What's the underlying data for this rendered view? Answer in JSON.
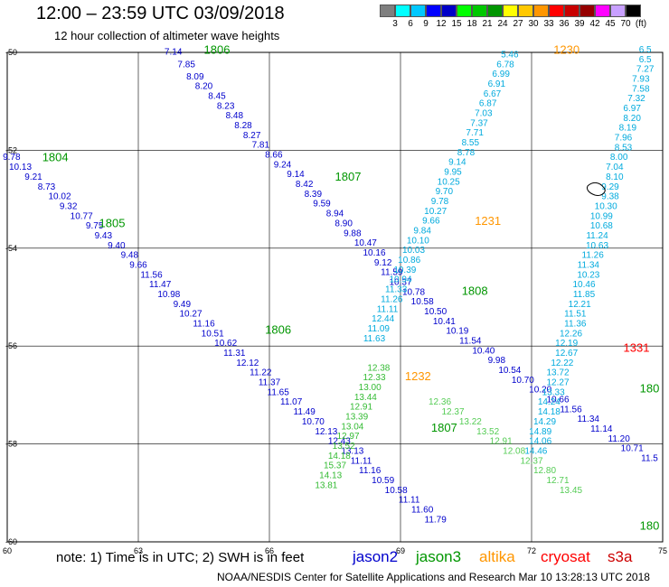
{
  "header": {
    "title": "12:00 – 23:59 UTC 03/09/2018",
    "subtitle": "12 hour collection of altimeter wave heights"
  },
  "legend": {
    "colors": [
      "#7f7f7f",
      "#00ffff",
      "#00c8ff",
      "#0000ff",
      "#0000c8",
      "#00ff00",
      "#00c800",
      "#009600",
      "#ffff00",
      "#ffc800",
      "#ff9600",
      "#ff0000",
      "#c80000",
      "#960000",
      "#ff00ff",
      "#c8a0ff",
      "#000000"
    ],
    "labels": [
      "3",
      "6",
      "9",
      "12",
      "15",
      "18",
      "21",
      "24",
      "27",
      "30",
      "33",
      "36",
      "39",
      "42",
      "45",
      "70",
      "(ft)"
    ]
  },
  "note": "note: 1) Time is in UTC; 2) SWH is in feet",
  "satellites": [
    {
      "name": "jason2",
      "color": "#0000cc"
    },
    {
      "name": "jason3",
      "color": "#009600"
    },
    {
      "name": "altika",
      "color": "#ff9600"
    },
    {
      "name": "cryosat",
      "color": "#ff0000"
    },
    {
      "name": "s3a",
      "color": "#cc0000"
    }
  ],
  "credit": "NOAA/NESDIS Center for Satellite Applications and Research   Mar 10 13:28:13 UTC 2018",
  "chart_data": {
    "type": "scatter",
    "xlim": [
      60,
      75
    ],
    "ylim": [
      -60,
      -50
    ],
    "xticks": [
      60,
      63,
      66,
      69,
      72,
      75
    ],
    "xtick_labels": [
      "60",
      "63",
      "66",
      "69",
      "72",
      "75"
    ],
    "yticks": [
      -50,
      -52,
      -54,
      -56,
      -58,
      -60
    ],
    "ytick_labels": [
      "-50",
      "-52",
      "-54",
      "-56",
      "-58",
      "-60"
    ],
    "grid": true,
    "series": [
      {
        "name": "1806",
        "color": "#0000cc",
        "points": [
          [
            63.8,
            -50.05,
            "7.14"
          ],
          [
            64.1,
            -50.3,
            "7.85"
          ],
          [
            64.3,
            -50.55,
            "8.09"
          ],
          [
            64.5,
            -50.75,
            "8.20"
          ],
          [
            64.8,
            -50.95,
            "8.45"
          ],
          [
            65.0,
            -51.15,
            "8.23"
          ],
          [
            65.2,
            -51.35,
            "8.48"
          ],
          [
            65.4,
            -51.55,
            "8.28"
          ],
          [
            65.6,
            -51.75,
            "8.27"
          ],
          [
            65.8,
            -51.95,
            "7.81"
          ],
          [
            66.1,
            -52.15,
            "8.66"
          ],
          [
            66.3,
            -52.35,
            "9.24"
          ],
          [
            66.6,
            -52.55,
            "9.14"
          ],
          [
            66.8,
            -52.75,
            "8.42"
          ],
          [
            67.0,
            -52.95,
            "8.39"
          ],
          [
            67.2,
            -53.15,
            "9.59"
          ],
          [
            67.5,
            -53.35,
            "8.94"
          ],
          [
            67.7,
            -53.55,
            "8.90"
          ],
          [
            67.9,
            -53.75,
            "9.88"
          ],
          [
            68.2,
            -53.95,
            "10.47"
          ],
          [
            68.4,
            -54.15,
            "10.16"
          ],
          [
            68.6,
            -54.35,
            "9.12"
          ],
          [
            68.8,
            -54.55,
            "11.59"
          ],
          [
            69.0,
            -54.75,
            "10.37"
          ],
          [
            69.3,
            -54.95,
            "10.78"
          ],
          [
            69.5,
            -55.15,
            "10.58"
          ],
          [
            69.8,
            -55.35,
            "10.50"
          ],
          [
            70.0,
            -55.55,
            "10.41"
          ],
          [
            70.3,
            -55.75,
            "10.19"
          ],
          [
            70.6,
            -55.95,
            "11.54"
          ],
          [
            70.9,
            -56.15,
            "10.40"
          ],
          [
            71.2,
            -56.35,
            "9.98"
          ],
          [
            71.5,
            -56.55,
            "10.54"
          ],
          [
            71.8,
            -56.75,
            "10.70"
          ],
          [
            72.2,
            -56.95,
            "10.20"
          ],
          [
            72.6,
            -57.15,
            "10.66"
          ],
          [
            72.9,
            -57.35,
            "11.56"
          ],
          [
            73.3,
            -57.55,
            "11.34"
          ],
          [
            73.6,
            -57.75,
            "11.14"
          ],
          [
            74.0,
            -57.95,
            "11.20"
          ],
          [
            74.3,
            -58.15,
            "10.71"
          ],
          [
            74.7,
            -58.35,
            "11.5"
          ]
        ]
      },
      {
        "name": "1804",
        "color": "#0000cc",
        "points": [
          [
            60.1,
            -52.2,
            "9.78"
          ],
          [
            60.3,
            -52.4,
            "10.13"
          ],
          [
            60.6,
            -52.6,
            "9.21"
          ],
          [
            60.9,
            -52.8,
            "8.73"
          ],
          [
            61.2,
            -53.0,
            "10.02"
          ],
          [
            61.4,
            -53.2,
            "9.32"
          ],
          [
            61.7,
            -53.4,
            "10.77"
          ],
          [
            62.0,
            -53.6,
            "9.75"
          ],
          [
            62.2,
            -53.8,
            "9.43"
          ],
          [
            62.5,
            -54.0,
            "9.40"
          ],
          [
            62.8,
            -54.2,
            "9.48"
          ],
          [
            63.0,
            -54.4,
            "9.66"
          ],
          [
            63.3,
            -54.6,
            "11.56"
          ],
          [
            63.5,
            -54.8,
            "11.47"
          ],
          [
            63.7,
            -55.0,
            "10.98"
          ],
          [
            64.0,
            -55.2,
            "9.49"
          ],
          [
            64.2,
            -55.4,
            "10.27"
          ],
          [
            64.5,
            -55.6,
            "11.16"
          ],
          [
            64.7,
            -55.8,
            "10.51"
          ],
          [
            65.0,
            -56.0,
            "10.62"
          ],
          [
            65.2,
            -56.2,
            "11.31"
          ],
          [
            65.5,
            -56.4,
            "12.12"
          ],
          [
            65.8,
            -56.6,
            "11.22"
          ],
          [
            66.0,
            -56.8,
            "11.37"
          ],
          [
            66.2,
            -57.0,
            "11.65"
          ],
          [
            66.5,
            -57.2,
            "11.07"
          ],
          [
            66.8,
            -57.4,
            "11.49"
          ],
          [
            67.0,
            -57.6,
            "10.70"
          ],
          [
            67.3,
            -57.8,
            "12.13"
          ],
          [
            67.6,
            -58.0,
            "12.43"
          ],
          [
            67.9,
            -58.2,
            "13.13"
          ],
          [
            68.1,
            -58.4,
            "11.11"
          ],
          [
            68.3,
            -58.6,
            "11.16"
          ],
          [
            68.6,
            -58.8,
            "10.59"
          ],
          [
            68.9,
            -59.0,
            "10.58"
          ],
          [
            69.2,
            -59.2,
            "11.11"
          ],
          [
            69.5,
            -59.4,
            "11.60"
          ],
          [
            69.8,
            -59.6,
            "11.79"
          ]
        ]
      },
      {
        "name": "1231",
        "color": "#00aadd",
        "points": [
          [
            71.5,
            -50.1,
            "5.46"
          ],
          [
            71.4,
            -50.3,
            "6.78"
          ],
          [
            71.3,
            -50.5,
            "6.99"
          ],
          [
            71.2,
            -50.7,
            "6.91"
          ],
          [
            71.1,
            -50.9,
            "6.67"
          ],
          [
            71.0,
            -51.1,
            "6.87"
          ],
          [
            70.9,
            -51.3,
            "7.03"
          ],
          [
            70.8,
            -51.5,
            "7.37"
          ],
          [
            70.7,
            -51.7,
            "7.71"
          ],
          [
            70.6,
            -51.9,
            "8.55"
          ],
          [
            70.5,
            -52.1,
            "8.78"
          ],
          [
            70.3,
            -52.3,
            "9.14"
          ],
          [
            70.2,
            -52.5,
            "9.95"
          ],
          [
            70.1,
            -52.7,
            "10.25"
          ],
          [
            70.0,
            -52.9,
            "9.70"
          ],
          [
            69.9,
            -53.1,
            "9.78"
          ],
          [
            69.8,
            -53.3,
            "10.27"
          ],
          [
            69.7,
            -53.5,
            "9.66"
          ],
          [
            69.5,
            -53.7,
            "9.84"
          ],
          [
            69.4,
            -53.9,
            "10.10"
          ],
          [
            69.3,
            -54.1,
            "10.03"
          ],
          [
            69.2,
            -54.3,
            "10.86"
          ],
          [
            69.1,
            -54.5,
            "10.39"
          ],
          [
            69.0,
            -54.7,
            "10.94"
          ],
          [
            68.9,
            -54.9,
            "11.33"
          ],
          [
            68.8,
            -55.1,
            "11.26"
          ],
          [
            68.7,
            -55.3,
            "11.11"
          ],
          [
            68.6,
            -55.5,
            "12.44"
          ],
          [
            68.5,
            -55.7,
            "11.09"
          ],
          [
            68.4,
            -55.9,
            "11.63"
          ]
        ]
      },
      {
        "name": "1807",
        "color": "#33bb33",
        "points": [
          [
            68.5,
            -56.5,
            "12.38"
          ],
          [
            68.4,
            -56.7,
            "12.33"
          ],
          [
            68.3,
            -56.9,
            "13.00"
          ],
          [
            68.2,
            -57.1,
            "13.44"
          ],
          [
            68.1,
            -57.3,
            "12.91"
          ],
          [
            68.0,
            -57.5,
            "13.39"
          ],
          [
            67.9,
            -57.7,
            "13.04"
          ],
          [
            67.8,
            -57.9,
            "12.97"
          ],
          [
            67.7,
            -58.1,
            "13.52"
          ],
          [
            67.6,
            -58.3,
            "14.18"
          ],
          [
            67.5,
            -58.5,
            "15.37"
          ],
          [
            67.4,
            -58.7,
            "14.13"
          ],
          [
            67.3,
            -58.9,
            "13.81"
          ]
        ]
      },
      {
        "name": "1232",
        "color": "#55cc55",
        "points": [
          [
            69.9,
            -57.2,
            "12.36"
          ],
          [
            70.2,
            -57.4,
            "12.37"
          ],
          [
            70.6,
            -57.6,
            "13.22"
          ],
          [
            71.0,
            -57.8,
            "13.52"
          ],
          [
            71.3,
            -58.0,
            "12.91"
          ],
          [
            71.6,
            -58.2,
            "12.08"
          ],
          [
            72.0,
            -58.4,
            "12.37"
          ],
          [
            72.3,
            -58.6,
            "12.80"
          ],
          [
            72.6,
            -58.8,
            "12.71"
          ],
          [
            72.9,
            -59.0,
            "13.45"
          ]
        ]
      },
      {
        "name": "1331",
        "color": "#00aadd",
        "points": [
          [
            74.6,
            -50.0,
            "6.5"
          ],
          [
            74.6,
            -50.2,
            "6.5"
          ],
          [
            74.6,
            -50.4,
            "7.27"
          ],
          [
            74.5,
            -50.6,
            "7.93"
          ],
          [
            74.5,
            -50.8,
            "7.58"
          ],
          [
            74.4,
            -51.0,
            "7.32"
          ],
          [
            74.3,
            -51.2,
            "6.97"
          ],
          [
            74.3,
            -51.4,
            "8.20"
          ],
          [
            74.2,
            -51.6,
            "8.19"
          ],
          [
            74.1,
            -51.8,
            "7.96"
          ],
          [
            74.1,
            -52.0,
            "8.53"
          ],
          [
            74.0,
            -52.2,
            "8.00"
          ],
          [
            73.9,
            -52.4,
            "7.04"
          ],
          [
            73.9,
            -52.6,
            "8.10"
          ],
          [
            73.8,
            -52.8,
            "9.29"
          ],
          [
            73.8,
            -53.0,
            "9.38"
          ],
          [
            73.7,
            -53.2,
            "10.30"
          ],
          [
            73.6,
            -53.4,
            "10.99"
          ],
          [
            73.6,
            -53.6,
            "10.68"
          ],
          [
            73.5,
            -53.8,
            "11.24"
          ],
          [
            73.5,
            -54.0,
            "10.63"
          ],
          [
            73.4,
            -54.2,
            "11.26"
          ],
          [
            73.3,
            -54.4,
            "11.34"
          ],
          [
            73.3,
            -54.6,
            "10.23"
          ],
          [
            73.2,
            -54.8,
            "10.46"
          ],
          [
            73.2,
            -55.0,
            "11.85"
          ],
          [
            73.1,
            -55.2,
            "12.21"
          ],
          [
            73.0,
            -55.4,
            "11.51"
          ],
          [
            73.0,
            -55.6,
            "11.36"
          ],
          [
            72.9,
            -55.8,
            "12.26"
          ],
          [
            72.8,
            -56.0,
            "12.19"
          ],
          [
            72.8,
            -56.2,
            "12.67"
          ],
          [
            72.7,
            -56.4,
            "12.22"
          ],
          [
            72.6,
            -56.6,
            "13.72"
          ],
          [
            72.6,
            -56.8,
            "12.27"
          ],
          [
            72.5,
            -57.0,
            "13.33"
          ],
          [
            72.4,
            -57.2,
            "14.24"
          ],
          [
            72.4,
            -57.4,
            "14.18"
          ],
          [
            72.3,
            -57.6,
            "14.29"
          ],
          [
            72.2,
            -57.8,
            "14.89"
          ],
          [
            72.2,
            -58.0,
            "14.06"
          ],
          [
            72.1,
            -58.2,
            "14.46"
          ]
        ]
      }
    ],
    "pass_labels": [
      {
        "text": "1806",
        "x": 64.8,
        "y": -50.03,
        "color": "#009600"
      },
      {
        "text": "1804",
        "x": 61.1,
        "y": -52.22,
        "color": "#009600"
      },
      {
        "text": "1807",
        "x": 67.8,
        "y": -52.62,
        "color": "#009600"
      },
      {
        "text": "1805",
        "x": 62.4,
        "y": -53.57,
        "color": "#009600"
      },
      {
        "text": "1231",
        "x": 71.0,
        "y": -53.52,
        "color": "#ff9600"
      },
      {
        "text": "1808",
        "x": 70.7,
        "y": -54.95,
        "color": "#009600"
      },
      {
        "text": "1806",
        "x": 66.2,
        "y": -55.75,
        "color": "#009600"
      },
      {
        "text": "1232",
        "x": 69.4,
        "y": -56.7,
        "color": "#ff9600"
      },
      {
        "text": "1807",
        "x": 70.0,
        "y": -57.75,
        "color": "#009600"
      },
      {
        "text": "1230",
        "x": 72.8,
        "y": -50.03,
        "color": "#ff9600"
      },
      {
        "text": "1331",
        "x": 74.4,
        "y": -56.12,
        "color": "#ff0000"
      },
      {
        "text": "180",
        "x": 74.7,
        "y": -56.95,
        "color": "#009600"
      },
      {
        "text": "180",
        "x": 74.7,
        "y": -59.75,
        "color": "#009600"
      }
    ]
  }
}
